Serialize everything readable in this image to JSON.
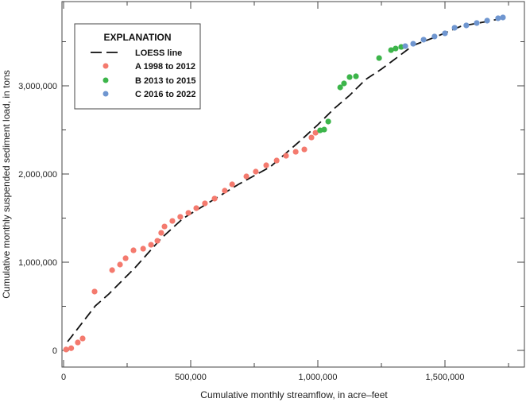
{
  "chart_data": {
    "type": "scatter",
    "title": "",
    "xlabel": "Cumulative monthly streamflow, in acre–feet",
    "ylabel": "Cumulative monthly suspended sediment load, in tons",
    "xlim": [
      -6250,
      1812500
    ],
    "ylim": [
      -189000,
      3955000
    ],
    "grid": false,
    "legend_placement": "top-left",
    "legend_title": "EXPLANATION",
    "x_ticks": [
      0,
      500000,
      1000000,
      1500000
    ],
    "x_tick_labels": [
      "0",
      "500,000",
      "1,000,000",
      "1,500,000"
    ],
    "x_minor_ticks": [
      250000,
      750000,
      1250000,
      1750000
    ],
    "y_ticks": [
      0,
      1000000,
      2000000,
      3000000
    ],
    "y_tick_labels": [
      "0",
      "1,000,000",
      "2,000,000",
      "3,000,000"
    ],
    "y_minor_ticks": [
      500000,
      1500000,
      2500000,
      3500000
    ],
    "loess": {
      "name": "LOESS line",
      "color": "#111111",
      "points": [
        [
          16000,
          99000
        ],
        [
          125000,
          505000
        ],
        [
          178000,
          640000
        ],
        [
          281000,
          937000
        ],
        [
          384000,
          1270000
        ],
        [
          469000,
          1495000
        ],
        [
          688000,
          1883000
        ],
        [
          813000,
          2081000
        ],
        [
          938000,
          2396000
        ],
        [
          1000000,
          2559000
        ],
        [
          1063000,
          2739000
        ],
        [
          1125000,
          2892000
        ],
        [
          1188000,
          3072000
        ],
        [
          1250000,
          3189000
        ],
        [
          1313000,
          3324000
        ],
        [
          1375000,
          3459000
        ],
        [
          1459000,
          3550000
        ],
        [
          1563000,
          3676000
        ],
        [
          1666000,
          3730000
        ],
        [
          1728000,
          3766000
        ]
      ]
    },
    "series": [
      {
        "name": "A 1998 to 2012",
        "color": "#f47a6e",
        "points": [
          [
            10000,
            10000
          ],
          [
            30000,
            25000
          ],
          [
            56000,
            90000
          ],
          [
            75000,
            135000
          ],
          [
            122000,
            667000
          ],
          [
            191000,
            910000
          ],
          [
            222000,
            973000
          ],
          [
            244000,
            1045000
          ],
          [
            275000,
            1135000
          ],
          [
            313000,
            1153000
          ],
          [
            344000,
            1198000
          ],
          [
            369000,
            1243000
          ],
          [
            384000,
            1333000
          ],
          [
            397000,
            1405000
          ],
          [
            428000,
            1468000
          ],
          [
            459000,
            1514000
          ],
          [
            491000,
            1559000
          ],
          [
            522000,
            1613000
          ],
          [
            556000,
            1667000
          ],
          [
            594000,
            1721000
          ],
          [
            634000,
            1811000
          ],
          [
            663000,
            1883000
          ],
          [
            719000,
            1973000
          ],
          [
            756000,
            2027000
          ],
          [
            797000,
            2099000
          ],
          [
            838000,
            2153000
          ],
          [
            875000,
            2207000
          ],
          [
            913000,
            2252000
          ],
          [
            947000,
            2279000
          ],
          [
            975000,
            2414000
          ],
          [
            991000,
            2468000
          ]
        ]
      },
      {
        "name": "B 2013 to 2015",
        "color": "#3cb54a",
        "points": [
          [
            1009000,
            2495000
          ],
          [
            1025000,
            2504000
          ],
          [
            1041000,
            2595000
          ],
          [
            1088000,
            2982000
          ],
          [
            1103000,
            3027000
          ],
          [
            1125000,
            3099000
          ],
          [
            1150000,
            3108000
          ],
          [
            1241000,
            3315000
          ],
          [
            1288000,
            3405000
          ],
          [
            1306000,
            3423000
          ],
          [
            1328000,
            3441000
          ]
        ]
      },
      {
        "name": "C 2016 to 2022",
        "color": "#6f96d0",
        "points": [
          [
            1344000,
            3450000
          ],
          [
            1375000,
            3477000
          ],
          [
            1416000,
            3523000
          ],
          [
            1459000,
            3559000
          ],
          [
            1500000,
            3595000
          ],
          [
            1538000,
            3658000
          ],
          [
            1584000,
            3685000
          ],
          [
            1625000,
            3712000
          ],
          [
            1666000,
            3739000
          ],
          [
            1709000,
            3766000
          ],
          [
            1728000,
            3775000
          ]
        ]
      }
    ]
  }
}
